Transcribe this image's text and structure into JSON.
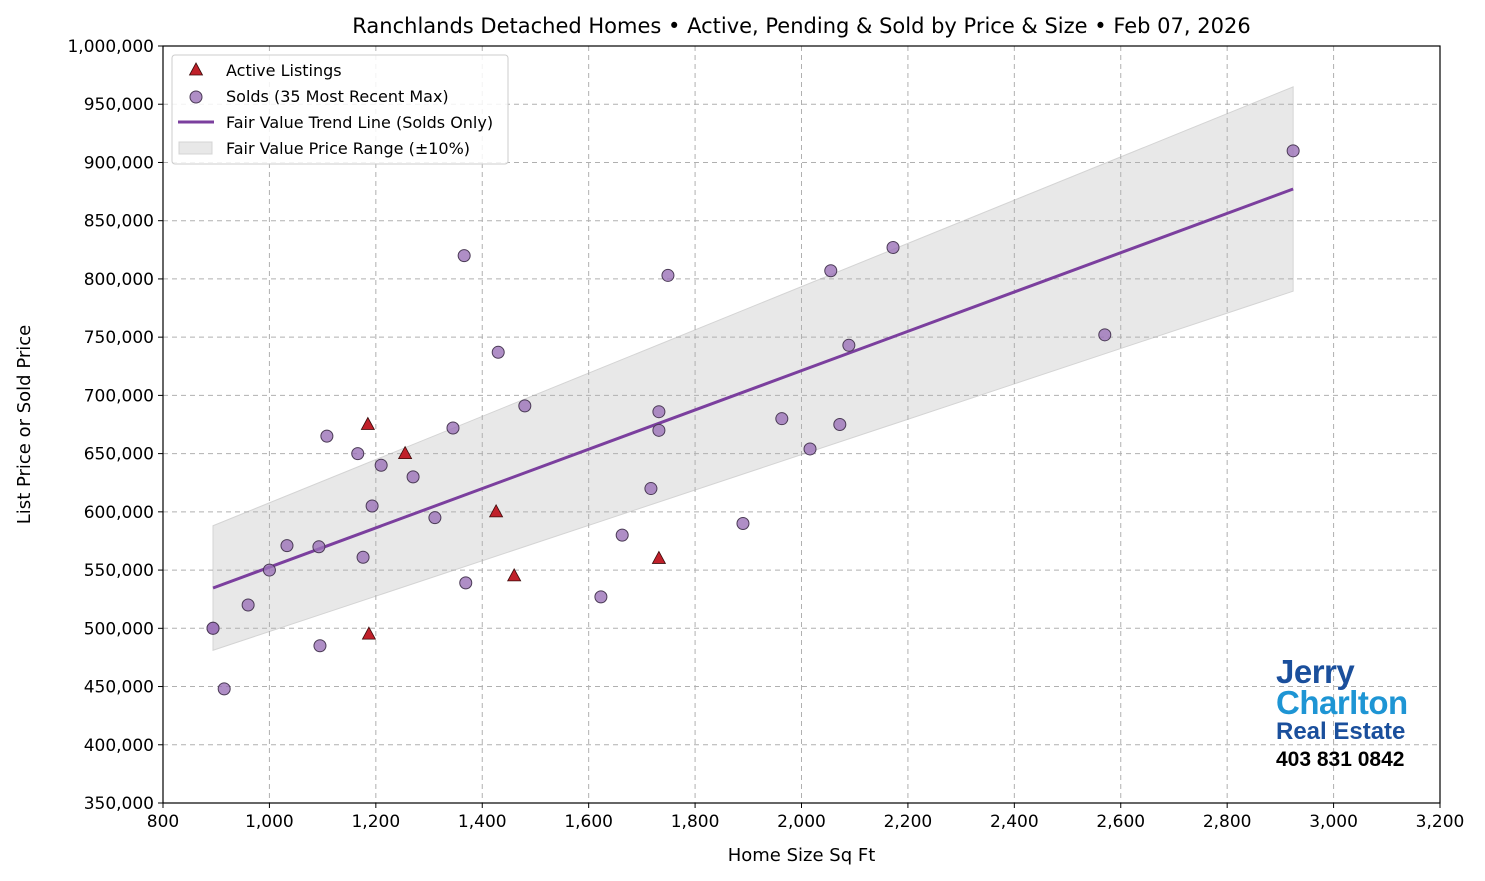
{
  "chart_data": {
    "type": "scatter",
    "title": "Ranchlands Detached Homes • Active, Pending & Sold by Price & Size • Feb 07, 2026",
    "xlabel": "Home Size Sq Ft",
    "ylabel": "List Price or Sold Price",
    "xlim": [
      800,
      3200
    ],
    "ylim": [
      350000,
      1000000
    ],
    "xticks": [
      800,
      1000,
      1200,
      1400,
      1600,
      1800,
      2000,
      2200,
      2400,
      2600,
      2800,
      3000,
      3200
    ],
    "xtick_labels": [
      "800",
      "1,000",
      "1,200",
      "1,400",
      "1,600",
      "1,800",
      "2,000",
      "2,200",
      "2,400",
      "2,600",
      "2,800",
      "3,000",
      "3,200"
    ],
    "yticks": [
      350000,
      400000,
      450000,
      500000,
      550000,
      600000,
      650000,
      700000,
      750000,
      800000,
      850000,
      900000,
      950000,
      1000000
    ],
    "ytick_labels": [
      "350,000",
      "400,000",
      "450,000",
      "500,000",
      "550,000",
      "600,000",
      "650,000",
      "700,000",
      "750,000",
      "800,000",
      "850,000",
      "900,000",
      "950,000",
      "1,000,000"
    ],
    "grid": true,
    "legend_position": "top-left",
    "colors": {
      "active": "#c0202a",
      "sold": "#9b72b8",
      "trend": "#7b3f9e",
      "band": "#e8e8e8"
    },
    "series": [
      {
        "name": "Active Listings",
        "marker": "triangle",
        "points": [
          [
            1185,
            675000
          ],
          [
            1255,
            650000
          ],
          [
            1426,
            600000
          ],
          [
            1460,
            545000
          ],
          [
            1732,
            560000
          ],
          [
            1187,
            495000
          ]
        ]
      },
      {
        "name": "Solds (35 Most Recent Max)",
        "marker": "circle",
        "points": [
          [
            894,
            500000
          ],
          [
            894,
            500000
          ],
          [
            915,
            448000
          ],
          [
            960,
            520000
          ],
          [
            1000,
            550000
          ],
          [
            1033,
            571000
          ],
          [
            1093,
            570000
          ],
          [
            1095,
            485000
          ],
          [
            1108,
            665000
          ],
          [
            1166,
            650000
          ],
          [
            1176,
            561000
          ],
          [
            1193,
            605000
          ],
          [
            1210,
            640000
          ],
          [
            1270,
            630000
          ],
          [
            1311,
            595000
          ],
          [
            1345,
            672000
          ],
          [
            1366,
            820000
          ],
          [
            1369,
            539000
          ],
          [
            1430,
            737000
          ],
          [
            1480,
            691000
          ],
          [
            1623,
            527000
          ],
          [
            1663,
            580000
          ],
          [
            1717,
            620000
          ],
          [
            1732,
            686000
          ],
          [
            1732,
            670000
          ],
          [
            1749,
            803000
          ],
          [
            1890,
            590000
          ],
          [
            1963,
            680000
          ],
          [
            2016,
            654000
          ],
          [
            2055,
            807000
          ],
          [
            2072,
            675000
          ],
          [
            2089,
            743000
          ],
          [
            2172,
            827000
          ],
          [
            2570,
            752000
          ],
          [
            2924,
            910000
          ]
        ]
      },
      {
        "name": "Fair Value Trend Line (Solds Only)",
        "type": "line",
        "points": [
          [
            894,
            534600
          ],
          [
            2924,
            877200
          ]
        ]
      },
      {
        "name": "Fair Value Price Range (±10%)",
        "type": "band",
        "band_pct": 10
      }
    ]
  },
  "logo": {
    "line1": "Jerry",
    "line2": "Charlton",
    "line3": "Real Estate",
    "phone": "403 831 0842"
  }
}
